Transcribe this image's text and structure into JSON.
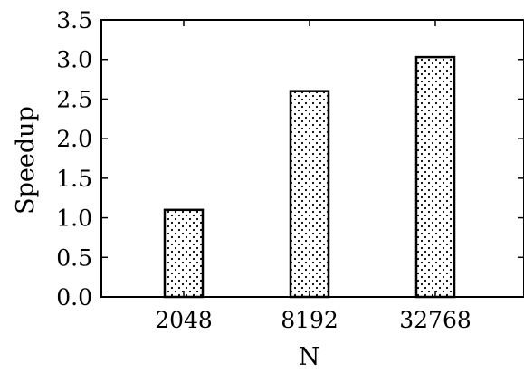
{
  "chart_data": {
    "type": "bar",
    "categories": [
      "2048",
      "8192",
      "32768"
    ],
    "values": [
      1.1,
      2.6,
      3.03
    ],
    "title": "",
    "xlabel": "N",
    "ylabel": "Speedup",
    "ylim": [
      0,
      3.5
    ],
    "yticks": [
      "0.0",
      "0.5",
      "1.0",
      "1.5",
      "2.0",
      "2.5",
      "3.0",
      "3.5"
    ],
    "bar_fill": "dotted",
    "bar_color": "#ffffff",
    "edge_color": "#000000",
    "grid": false,
    "legend": "none"
  }
}
